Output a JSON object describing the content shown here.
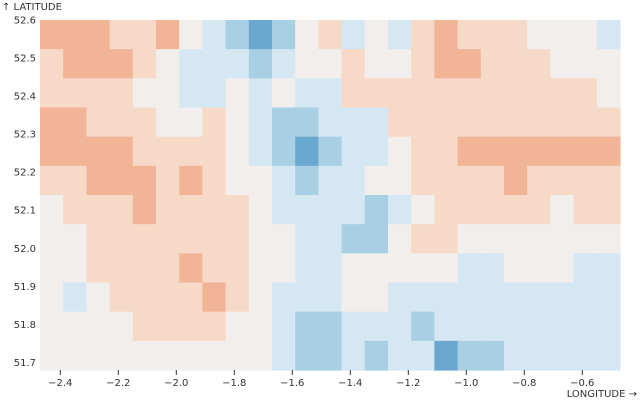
{
  "chart_data": {
    "type": "heatmap",
    "title": "",
    "xlabel": "↑ LATITUDE",
    "ylabel_note": "",
    "x_axis": {
      "label": "LONGITUDE →",
      "range": [
        -2.47,
        -0.47
      ],
      "ticks": [
        "−2.4",
        "−2.2",
        "−2.0",
        "−1.8",
        "−1.6",
        "−1.4",
        "−1.2",
        "−1.0",
        "−0.8",
        "−0.6"
      ],
      "tick_values": [
        -2.4,
        -2.2,
        -2.0,
        -1.8,
        -1.6,
        -1.4,
        -1.2,
        -1.0,
        -0.8,
        -0.6
      ]
    },
    "y_axis": {
      "label": "↑ LATITUDE",
      "range": [
        51.68,
        52.6
      ],
      "ticks": [
        "51.7",
        "51.8",
        "51.9",
        "52.0",
        "52.1",
        "52.2",
        "52.3",
        "52.4",
        "52.5",
        "52.6"
      ],
      "tick_values": [
        51.7,
        51.8,
        51.9,
        52.0,
        52.1,
        52.2,
        52.3,
        52.4,
        52.5,
        52.6
      ]
    },
    "color_scale": {
      "scheme": "diverging red-blue",
      "colors": [
        "#b2182b",
        "#ef8a62",
        "#fddbc7",
        "#f7f7f7",
        "#d1e5f0",
        "#67a9cf",
        "#2166ac",
        "#053061"
      ]
    },
    "grid": false,
    "legend": "none",
    "grid_cells": {
      "columns": 25,
      "rows": 12,
      "levels": "-1 = light blue, -2 = mid blue, -3 = dark blue, -4 = deepest blue; 1 = light red, 2 = mid red, 3 = strong red; 0 = neutral",
      "values": [
        [
          2,
          2,
          2,
          1,
          1,
          2,
          0,
          -1,
          -2,
          -3,
          -2,
          0,
          1,
          -1,
          0,
          -1,
          1,
          2,
          1,
          1,
          1,
          0,
          0,
          0,
          -1
        ],
        [
          1,
          2,
          2,
          2,
          1,
          0,
          -1,
          -1,
          -1,
          -2,
          -1,
          0,
          0,
          1,
          0,
          0,
          1,
          2,
          2,
          1,
          1,
          1,
          0,
          0,
          0
        ],
        [
          1,
          1,
          1,
          1,
          0,
          0,
          -1,
          -1,
          0,
          -1,
          0,
          -1,
          -1,
          1,
          1,
          1,
          1,
          1,
          1,
          1,
          1,
          1,
          1,
          1,
          0
        ],
        [
          2,
          2,
          1,
          1,
          1,
          0,
          0,
          1,
          0,
          -1,
          -2,
          -2,
          -1,
          -1,
          -1,
          1,
          1,
          1,
          1,
          1,
          1,
          1,
          1,
          1,
          1
        ],
        [
          2,
          2,
          2,
          2,
          1,
          1,
          1,
          1,
          0,
          -1,
          -2,
          -3,
          -2,
          -1,
          -1,
          0,
          1,
          1,
          2,
          2,
          2,
          2,
          2,
          2,
          2
        ],
        [
          1,
          1,
          2,
          2,
          2,
          1,
          2,
          1,
          0,
          0,
          -1,
          -2,
          -1,
          -1,
          0,
          0,
          1,
          1,
          1,
          1,
          2,
          1,
          1,
          1,
          1
        ],
        [
          0,
          1,
          1,
          1,
          2,
          1,
          1,
          1,
          1,
          0,
          -1,
          -1,
          -1,
          -1,
          -2,
          -1,
          0,
          1,
          1,
          1,
          1,
          1,
          0,
          1,
          1
        ],
        [
          0,
          0,
          1,
          1,
          1,
          1,
          1,
          1,
          1,
          0,
          0,
          -1,
          -1,
          -2,
          -2,
          0,
          1,
          1,
          0,
          0,
          0,
          0,
          0,
          0,
          0
        ],
        [
          0,
          0,
          1,
          1,
          1,
          1,
          2,
          1,
          1,
          0,
          0,
          -1,
          -1,
          0,
          0,
          0,
          0,
          0,
          -1,
          -1,
          0,
          0,
          0,
          -1,
          -1
        ],
        [
          0,
          -1,
          0,
          1,
          1,
          1,
          1,
          2,
          1,
          0,
          -1,
          -1,
          -1,
          0,
          0,
          -1,
          -1,
          -1,
          -1,
          -1,
          -1,
          -1,
          -1,
          -1,
          -1
        ],
        [
          0,
          0,
          0,
          0,
          1,
          1,
          1,
          1,
          0,
          0,
          -1,
          -2,
          -2,
          -1,
          -1,
          -1,
          -2,
          -1,
          -1,
          -1,
          -1,
          -1,
          -1,
          -1,
          -1
        ],
        [
          0,
          0,
          0,
          0,
          0,
          0,
          0,
          0,
          0,
          0,
          -1,
          -2,
          -2,
          -1,
          -2,
          -1,
          -1,
          -3,
          -2,
          -2,
          -1,
          -1,
          -1,
          -1,
          -1
        ]
      ]
    }
  },
  "colors": {
    "neg1": "#d5e7f2",
    "neg2": "#a9cfe4",
    "neg3": "#6aa8cf",
    "neg4": "#2d6fa7",
    "zero": "#f2eeec",
    "pos1": "#f7d9c8",
    "pos2": "#f2b497",
    "pos3": "#e9957a",
    "text": "#333333"
  }
}
